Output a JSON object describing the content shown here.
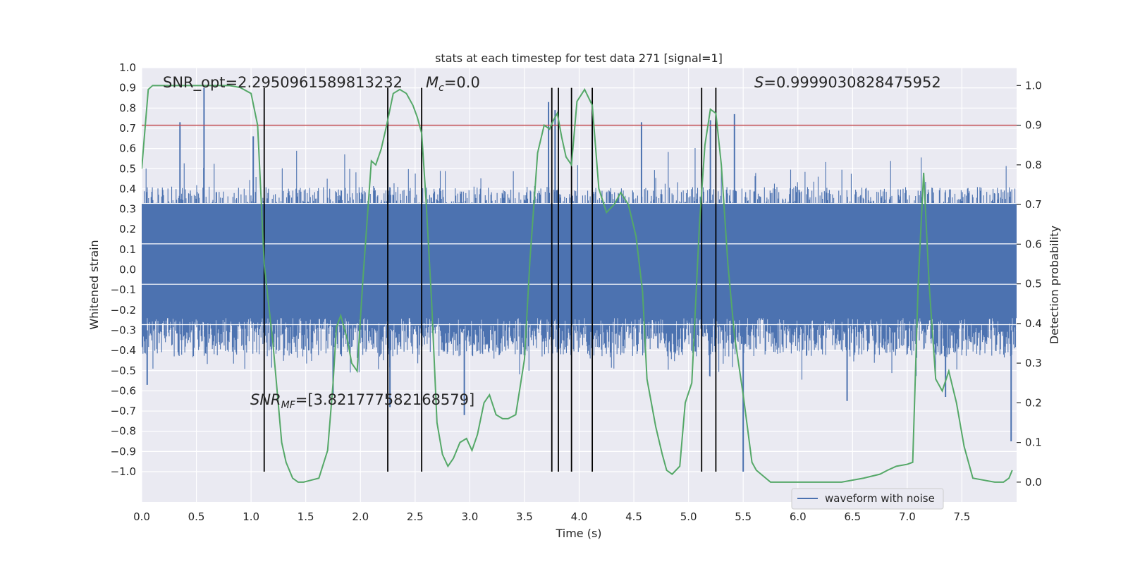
{
  "chart_data": {
    "type": "line",
    "title": "stats at each timestep for test data 271 [signal=1]",
    "xlabel": "Time (s)",
    "ylabel": "Whitened strain",
    "y2label": "Detection probability",
    "xlim": [
      0.0,
      8.0
    ],
    "ylim": [
      -1.15,
      1.0
    ],
    "y2lim": [
      -0.05,
      1.045
    ],
    "x_ticks": [
      0.0,
      0.5,
      1.0,
      1.5,
      2.0,
      2.5,
      3.0,
      3.5,
      4.0,
      4.5,
      5.0,
      5.5,
      6.0,
      6.5,
      7.0,
      7.5
    ],
    "x_tick_labels": [
      "0.0",
      "0.5",
      "1.0",
      "1.5",
      "2.0",
      "2.5",
      "3.0",
      "3.5",
      "4.0",
      "4.5",
      "5.0",
      "5.5",
      "6.0",
      "6.5",
      "7.0",
      "7.5"
    ],
    "y_ticks": [
      1.0,
      0.9,
      0.8,
      0.7,
      0.6,
      0.5,
      0.4,
      0.3,
      0.2,
      0.1,
      0.0,
      -0.1,
      -0.2,
      -0.3,
      -0.4,
      -0.5,
      -0.6,
      -0.7,
      -0.8,
      -0.9,
      -1.0
    ],
    "y_tick_labels": [
      "1.0",
      "0.9",
      "0.8",
      "0.7",
      "0.6",
      "0.5",
      "0.4",
      "0.3",
      "0.2",
      "0.1",
      "0.0",
      "−0.1",
      "−0.2",
      "−0.3",
      "−0.4",
      "−0.5",
      "−0.6",
      "−0.7",
      "−0.8",
      "−0.9",
      "−1.0"
    ],
    "y2_ticks": [
      1.0,
      0.9,
      0.8,
      0.7,
      0.6,
      0.5,
      0.4,
      0.3,
      0.2,
      0.1,
      0.0
    ],
    "y2_tick_labels": [
      "1.0",
      "0.9",
      "0.8",
      "0.7",
      "0.6",
      "0.5",
      "0.4",
      "0.3",
      "0.2",
      "0.1",
      "0.0"
    ],
    "threshold": 0.9,
    "vertical_lines": [
      1.12,
      2.25,
      2.56,
      3.75,
      3.81,
      3.93,
      4.12,
      5.12,
      5.25
    ],
    "annotations": {
      "snr_opt": "SNR_opt=2.2950961589813232",
      "mc": "=0.0",
      "s_stat": "=0.9999030828475952",
      "snr_mf": "=[3.821777582168579]"
    },
    "legend": {
      "label": "waveform with noise",
      "position": "lower-right"
    },
    "waveform": {
      "name": "waveform with noise",
      "noise_band": [
        -0.43,
        0.41
      ],
      "spikes": [
        [
          0.57,
          0.9
        ],
        [
          0.35,
          0.73
        ],
        [
          1.02,
          0.66
        ],
        [
          2.25,
          0.63
        ],
        [
          3.72,
          0.83
        ],
        [
          3.78,
          0.79
        ],
        [
          4.12,
          0.76
        ],
        [
          4.57,
          0.73
        ],
        [
          5.2,
          0.74
        ],
        [
          5.42,
          0.77
        ],
        [
          5.5,
          -1.0
        ],
        [
          7.95,
          -0.85
        ],
        [
          2.95,
          -0.72
        ],
        [
          2.27,
          -0.68
        ],
        [
          0.05,
          -0.57
        ],
        [
          1.75,
          -0.62
        ],
        [
          6.45,
          -0.65
        ],
        [
          7.35,
          -0.63
        ]
      ]
    },
    "probability": {
      "name": "detection probability",
      "x": [
        0.0,
        0.06,
        0.1,
        0.2,
        0.4,
        0.6,
        0.8,
        0.9,
        1.0,
        1.06,
        1.12,
        1.2,
        1.28,
        1.32,
        1.38,
        1.43,
        1.48,
        1.55,
        1.62,
        1.7,
        1.75,
        1.78,
        1.82,
        1.88,
        1.92,
        1.97,
        2.02,
        2.1,
        2.14,
        2.19,
        2.24,
        2.3,
        2.36,
        2.42,
        2.48,
        2.52,
        2.56,
        2.6,
        2.65,
        2.7,
        2.75,
        2.8,
        2.85,
        2.91,
        2.97,
        3.02,
        3.07,
        3.13,
        3.18,
        3.24,
        3.3,
        3.35,
        3.42,
        3.5,
        3.55,
        3.62,
        3.68,
        3.73,
        3.76,
        3.8,
        3.84,
        3.88,
        3.93,
        3.98,
        4.05,
        4.12,
        4.18,
        4.25,
        4.32,
        4.38,
        4.45,
        4.52,
        4.58,
        4.62,
        4.7,
        4.76,
        4.8,
        4.85,
        4.92,
        4.97,
        5.03,
        5.1,
        5.15,
        5.2,
        5.25,
        5.3,
        5.36,
        5.42,
        5.5,
        5.58,
        5.62,
        5.75,
        6.0,
        6.2,
        6.4,
        6.6,
        6.75,
        6.82,
        6.9,
        7.0,
        7.05,
        7.1,
        7.15,
        7.2,
        7.26,
        7.32,
        7.38,
        7.45,
        7.52,
        7.6,
        7.7,
        7.8,
        7.88,
        7.93,
        7.96
      ],
      "y": [
        0.79,
        0.99,
        1.0,
        1.0,
        1.0,
        1.0,
        1.0,
        0.995,
        0.98,
        0.9,
        0.55,
        0.35,
        0.1,
        0.05,
        0.01,
        0.0,
        0.0,
        0.005,
        0.01,
        0.08,
        0.25,
        0.39,
        0.42,
        0.36,
        0.3,
        0.28,
        0.5,
        0.81,
        0.8,
        0.84,
        0.9,
        0.98,
        0.99,
        0.98,
        0.95,
        0.92,
        0.88,
        0.71,
        0.46,
        0.15,
        0.07,
        0.04,
        0.06,
        0.1,
        0.11,
        0.08,
        0.12,
        0.2,
        0.22,
        0.17,
        0.16,
        0.16,
        0.17,
        0.31,
        0.56,
        0.83,
        0.9,
        0.89,
        0.91,
        0.93,
        0.87,
        0.82,
        0.8,
        0.96,
        0.99,
        0.95,
        0.74,
        0.68,
        0.7,
        0.73,
        0.7,
        0.62,
        0.48,
        0.26,
        0.14,
        0.07,
        0.03,
        0.02,
        0.04,
        0.2,
        0.25,
        0.65,
        0.85,
        0.94,
        0.93,
        0.8,
        0.55,
        0.37,
        0.22,
        0.05,
        0.03,
        0.0,
        0.0,
        0.0,
        0.0,
        0.01,
        0.02,
        0.03,
        0.04,
        0.045,
        0.05,
        0.5,
        0.78,
        0.5,
        0.26,
        0.23,
        0.28,
        0.2,
        0.09,
        0.01,
        0.005,
        0.0,
        0.0,
        0.01,
        0.03
      ]
    }
  }
}
